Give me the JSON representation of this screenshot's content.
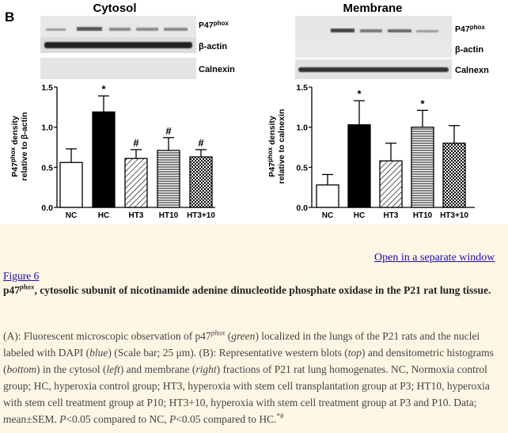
{
  "figure": {
    "panel_letter": "B",
    "left_panel": {
      "title": "Cytosol",
      "blot_labels": [
        "P47phox",
        "β-actin",
        "Calnexin"
      ],
      "ylabel_line1": "P47phox density",
      "ylabel_line2": "relative to β-actin"
    },
    "right_panel": {
      "title": "Membrane",
      "blot_labels": [
        "P47phox",
        "β-actin",
        "Calnexn"
      ],
      "ylabel_line1": "P47phox density",
      "ylabel_line2": "relative to calnexin"
    }
  },
  "chart_data": [
    {
      "type": "bar",
      "title": "Cytosol",
      "categories": [
        "NC",
        "HC",
        "HT3",
        "HT10",
        "HT3+10"
      ],
      "values": [
        0.56,
        1.19,
        0.61,
        0.71,
        0.63
      ],
      "errors": [
        0.17,
        0.2,
        0.11,
        0.16,
        0.09
      ],
      "annotations": [
        "",
        "*",
        "#",
        "#",
        "#"
      ],
      "ylabel": "P47phox density relative to β-actin",
      "ylim": [
        0,
        1.5
      ],
      "yticks": [
        "0.0",
        "0.5",
        "1.0",
        "1.5"
      ]
    },
    {
      "type": "bar",
      "title": "Membrane",
      "categories": [
        "NC",
        "HC",
        "HT3",
        "HT10",
        "HT3+10"
      ],
      "values": [
        0.28,
        1.03,
        0.58,
        1.0,
        0.8
      ],
      "errors": [
        0.13,
        0.3,
        0.22,
        0.21,
        0.22
      ],
      "annotations": [
        "",
        "*",
        "",
        "*",
        ""
      ],
      "ylabel": "P47phox density relative to calnexin",
      "ylim": [
        0,
        1.5
      ],
      "yticks": [
        "0.0",
        "0.5",
        "1.0",
        "1.5"
      ]
    }
  ],
  "links": {
    "open_window": "Open in a separate window",
    "figure_label": "Figure 6"
  },
  "title": {
    "p47": "p47",
    "phox": "phox",
    "rest": ", cytosolic subunit of nicotinamide adenine dinucleotide phosphate oxidase in the P21 rat lung tissue."
  },
  "caption": {
    "a1": "(A): Fluorescent microscopic observation of p47",
    "phox": "phox",
    "a2": " (",
    "green": "green",
    "a3": ") localized in the lungs of the P21 rats and the nuclei labeled with DAPI (",
    "blue": "blue",
    "a4": ") (Scale bar; 25 μm). (B): Representative western blots (",
    "top": "top",
    "a5": ") and densitometric histograms (",
    "bottom": "bottom",
    "a6": ") in the cytosol (",
    "left": "left",
    "a7": ") and membrane (",
    "right": "right",
    "a8": ") fractions of P21 rat lung homogenates. NC, Normoxia control group; HC, hyperoxia control group; HT3, hyperoxia with stem cell transplantation group at P3; HT10, hyperoxia with stem cell treatment group at P10; HT3+10, hyperoxia with stem cell treatment group at P3 and P10. Data; mean±SEM. ",
    "p1": "P",
    "a9": "<0.05 compared to NC, ",
    "p2": "P",
    "a10": "<0.05 compared to HC.",
    "sup": "*#"
  }
}
